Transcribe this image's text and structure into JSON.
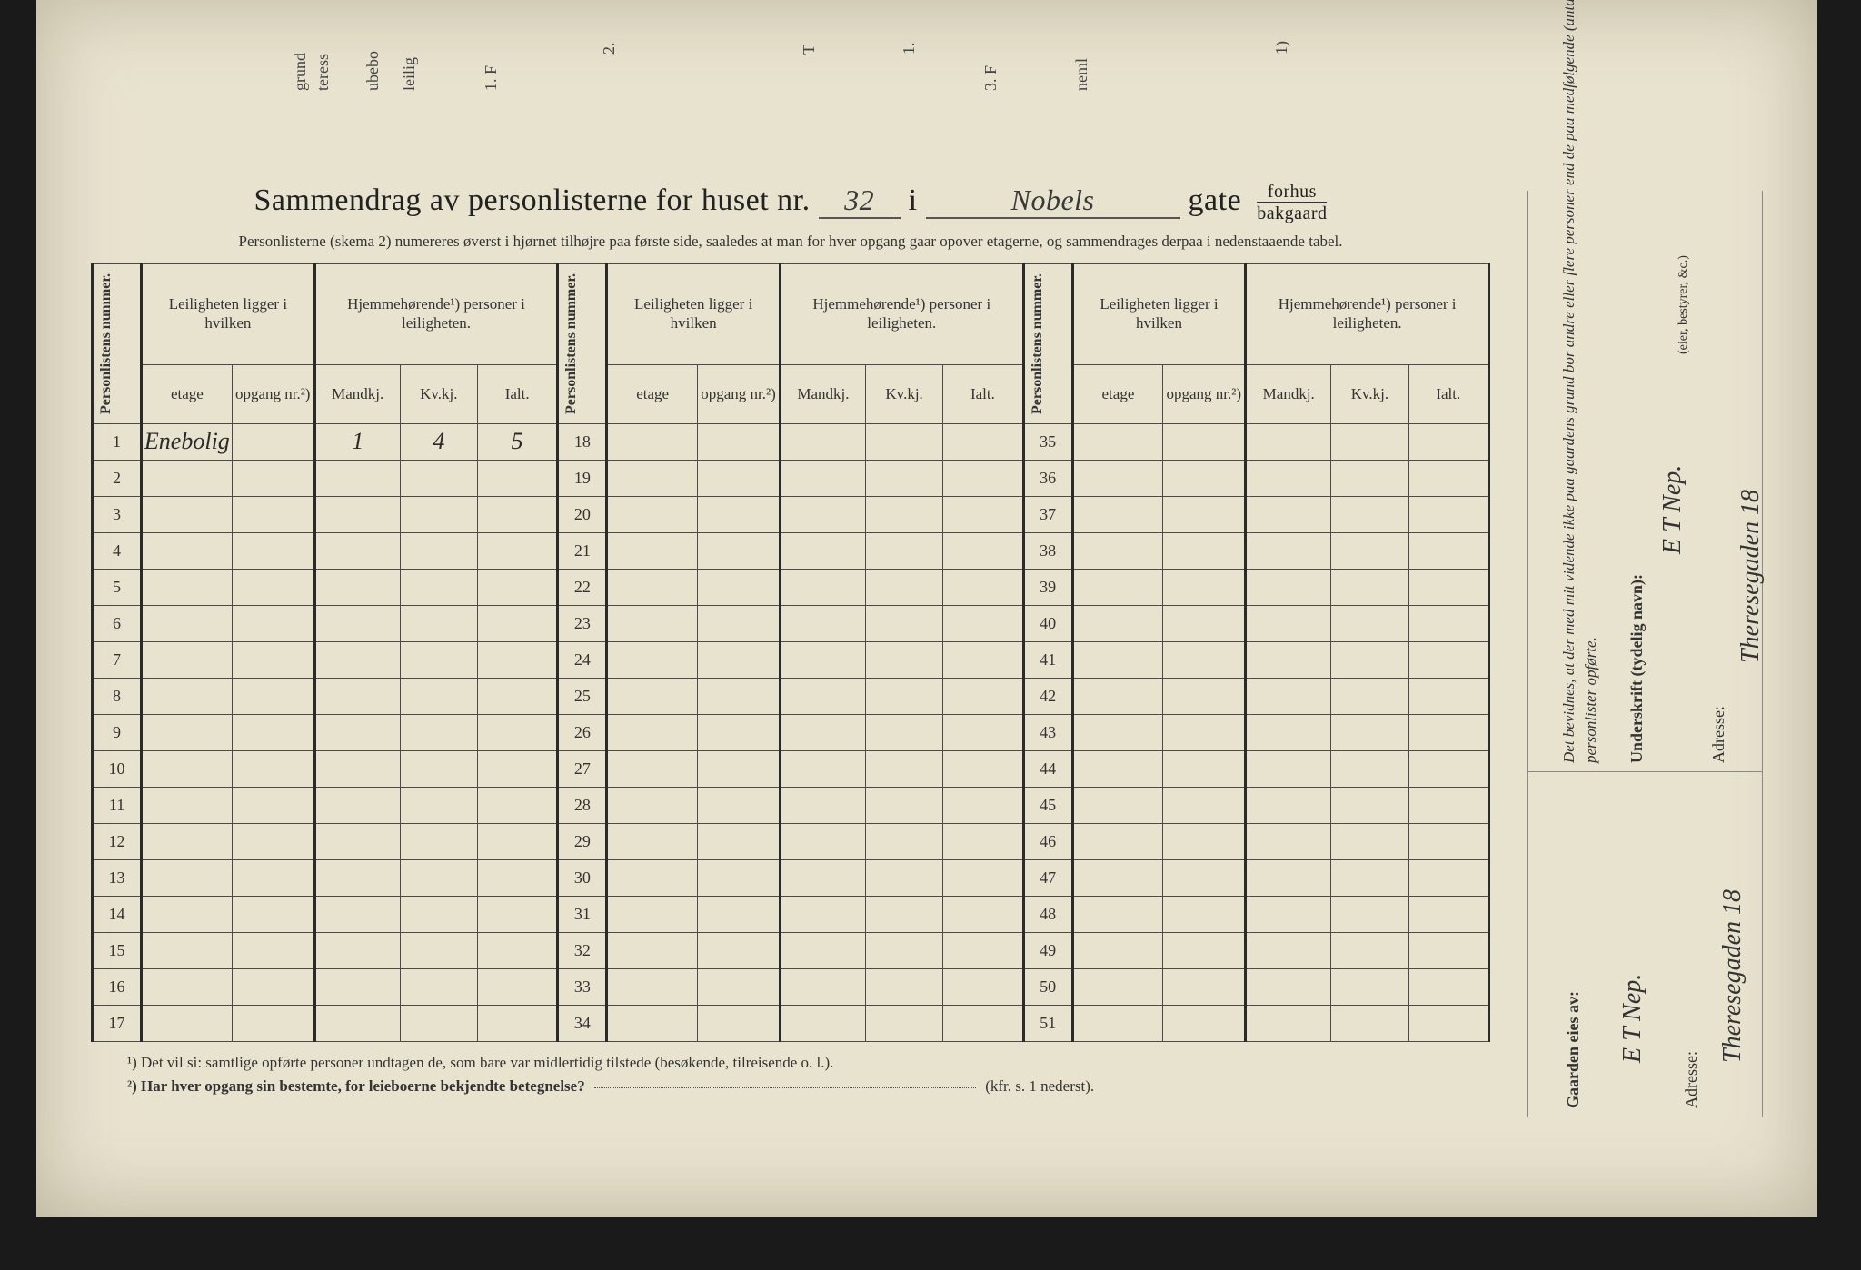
{
  "top_partial_labels": [
    "grund",
    "teress",
    "ubebo",
    "leilig",
    "1. F",
    "2.",
    "T",
    "1.",
    "3. F",
    "neml",
    "1)"
  ],
  "title": {
    "prefix": "Sammendrag av personlisterne for huset nr.",
    "house_nr": "32",
    "mid": "i",
    "street": "Nobels",
    "suffix": "gate",
    "frac_top": "forhus",
    "frac_bot": "bakgaard"
  },
  "subtitle": "Personlisterne (skema 2) numereres øverst i hjørnet tilhøjre paa første side, saaledes at man for hver opgang gaar opover etagerne, og sammendrages derpaa i nedenstaaende tabel.",
  "headers": {
    "personlistens": "Personlistens nummer.",
    "leil_top": "Leiligheten ligger i hvilken",
    "hjemme_top": "Hjemmehørende¹) personer i leiligheten.",
    "etage": "etage",
    "opgang": "opgang nr.²)",
    "mand": "Mandkj.",
    "kv": "Kv.kj.",
    "ialt": "Ialt."
  },
  "rows": {
    "set1": [
      1,
      2,
      3,
      4,
      5,
      6,
      7,
      8,
      9,
      10,
      11,
      12,
      13,
      14,
      15,
      16,
      17
    ],
    "set2": [
      18,
      19,
      20,
      21,
      22,
      23,
      24,
      25,
      26,
      27,
      28,
      29,
      30,
      31,
      32,
      33,
      34
    ],
    "set3": [
      35,
      36,
      37,
      38,
      39,
      40,
      41,
      42,
      43,
      44,
      45,
      46,
      47,
      48,
      49,
      50,
      51
    ]
  },
  "row1_data": {
    "etage": "Enebolig",
    "mand": "1",
    "kv": "4",
    "ialt": "5"
  },
  "footnotes": {
    "f1": "¹) Det vil si: samtlige opførte personer undtagen de, som bare var midlertidig tilstede (besøkende, tilreisende o. l.).",
    "f2_a": "²) Har hver opgang sin bestemte, for leieboerne bekjendte betegnelse?",
    "f2_b": "(kfr. s. 1 nederst)."
  },
  "right": {
    "declaration": "Det bevidnes, at der med mit vidende ikke paa gaardens grund bor andre eller flere personer end de paa medfølgende (antal:)",
    "personlister": "personlister opførte.",
    "underskrift_label": "Underskrift (tydelig navn):",
    "eier_note": "(eier, bestyrer, &c.)",
    "adresse_label": "Adresse:",
    "signature": "E T Nep.",
    "address_hand": "Theresegaden 18",
    "gaarden": "Gaarden eies av:",
    "owner_hand": "E T Nep.",
    "owner_addr": "Theresegaden 18"
  }
}
